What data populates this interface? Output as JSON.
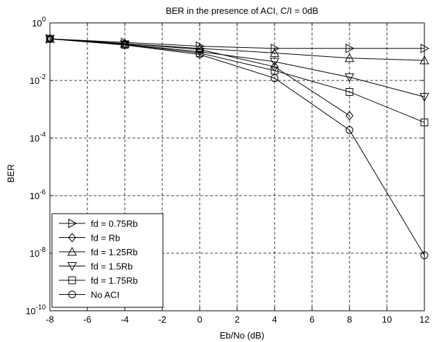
{
  "chart_data": {
    "type": "line",
    "title": "BER in the presence of ACI, C/I = 0dB",
    "xlabel": "Eb/No (dB)",
    "ylabel": "BER",
    "xlim": [
      -8,
      12
    ],
    "ylim_exponent": [
      -10,
      0
    ],
    "yscale": "log",
    "grid": true,
    "legend_position": "bottom-left",
    "x_ticks": [
      -8,
      -6,
      -4,
      -2,
      0,
      2,
      4,
      6,
      8,
      10,
      12
    ],
    "y_tick_exponents": [
      -10,
      -8,
      -6,
      -4,
      -2,
      0
    ],
    "x": [
      -8,
      -4,
      0,
      4,
      8,
      12
    ],
    "series": [
      {
        "name": "fd = 0.75Rb",
        "marker": "triangle-right",
        "values": [
          0.28,
          0.21,
          0.155,
          0.13,
          0.13,
          0.13
        ]
      },
      {
        "name": "fd = Rb",
        "marker": "diamond",
        "values": [
          0.28,
          0.19,
          0.12,
          0.03,
          0.0006,
          null
        ]
      },
      {
        "name": "fd = 1.25Rb",
        "marker": "triangle-up",
        "values": [
          0.28,
          0.19,
          0.13,
          0.09,
          0.06,
          0.05
        ]
      },
      {
        "name": "fd = 1.5Rb",
        "marker": "triangle-down",
        "values": [
          0.28,
          0.18,
          0.1,
          0.045,
          0.013,
          0.0027
        ]
      },
      {
        "name": "fd = 1.75Rb",
        "marker": "square",
        "values": [
          0.28,
          0.175,
          0.09,
          0.022,
          0.004,
          0.00035
        ]
      },
      {
        "name": "No ACI",
        "marker": "circle",
        "values": [
          0.28,
          0.17,
          0.08,
          0.012,
          0.00019,
          8.5e-09
        ]
      }
    ]
  }
}
